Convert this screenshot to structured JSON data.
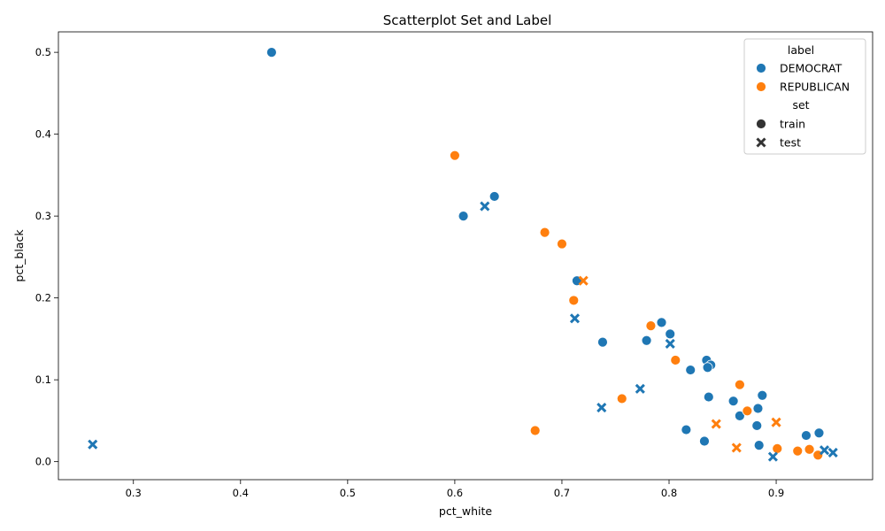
{
  "chart_data": {
    "type": "scatter",
    "title": "Scatterplot Set and Label",
    "xlabel": "pct_white",
    "ylabel": "pct_black",
    "xlim": [
      0.23,
      0.99
    ],
    "ylim": [
      -0.022,
      0.525
    ],
    "xticks": [
      "0.3",
      "0.4",
      "0.5",
      "0.6",
      "0.7",
      "0.8",
      "0.9"
    ],
    "yticks": [
      "0.0",
      "0.1",
      "0.2",
      "0.3",
      "0.4",
      "0.5"
    ],
    "grid": false,
    "legend": {
      "placement": "top-right",
      "hue_title": "label",
      "style_title": "set",
      "hue_entries": [
        {
          "name": "DEMOCRAT",
          "color": "#1f77b4"
        },
        {
          "name": "REPUBLICAN",
          "color": "#ff7f0e"
        }
      ],
      "style_entries": [
        {
          "name": "train",
          "marker": "circle"
        },
        {
          "name": "test",
          "marker": "x"
        }
      ]
    },
    "series": [
      {
        "label": "DEMOCRAT",
        "set": "train",
        "points": [
          [
            0.429,
            0.5
          ],
          [
            0.637,
            0.324
          ],
          [
            0.608,
            0.3
          ],
          [
            0.714,
            0.221
          ],
          [
            0.738,
            0.146
          ],
          [
            0.779,
            0.148
          ],
          [
            0.793,
            0.17
          ],
          [
            0.801,
            0.156
          ],
          [
            0.835,
            0.124
          ],
          [
            0.839,
            0.118
          ],
          [
            0.836,
            0.115
          ],
          [
            0.82,
            0.112
          ],
          [
            0.887,
            0.081
          ],
          [
            0.837,
            0.079
          ],
          [
            0.86,
            0.074
          ],
          [
            0.883,
            0.065
          ],
          [
            0.866,
            0.056
          ],
          [
            0.882,
            0.044
          ],
          [
            0.816,
            0.039
          ],
          [
            0.94,
            0.035
          ],
          [
            0.928,
            0.032
          ],
          [
            0.833,
            0.025
          ],
          [
            0.884,
            0.02
          ]
        ]
      },
      {
        "label": "REPUBLICAN",
        "set": "train",
        "points": [
          [
            0.6,
            0.374
          ],
          [
            0.684,
            0.28
          ],
          [
            0.7,
            0.266
          ],
          [
            0.711,
            0.197
          ],
          [
            0.783,
            0.166
          ],
          [
            0.806,
            0.124
          ],
          [
            0.866,
            0.094
          ],
          [
            0.756,
            0.077
          ],
          [
            0.873,
            0.062
          ],
          [
            0.675,
            0.038
          ],
          [
            0.901,
            0.016
          ],
          [
            0.931,
            0.015
          ],
          [
            0.92,
            0.013
          ],
          [
            0.939,
            0.008
          ]
        ]
      },
      {
        "label": "DEMOCRAT",
        "set": "test",
        "points": [
          [
            0.262,
            0.021
          ],
          [
            0.628,
            0.312
          ],
          [
            0.712,
            0.175
          ],
          [
            0.801,
            0.144
          ],
          [
            0.773,
            0.089
          ],
          [
            0.737,
            0.066
          ],
          [
            0.945,
            0.014
          ],
          [
            0.953,
            0.011
          ],
          [
            0.897,
            0.006
          ]
        ]
      },
      {
        "label": "REPUBLICAN",
        "set": "test",
        "points": [
          [
            0.72,
            0.221
          ],
          [
            0.9,
            0.048
          ],
          [
            0.844,
            0.046
          ],
          [
            0.863,
            0.017
          ]
        ]
      }
    ]
  }
}
